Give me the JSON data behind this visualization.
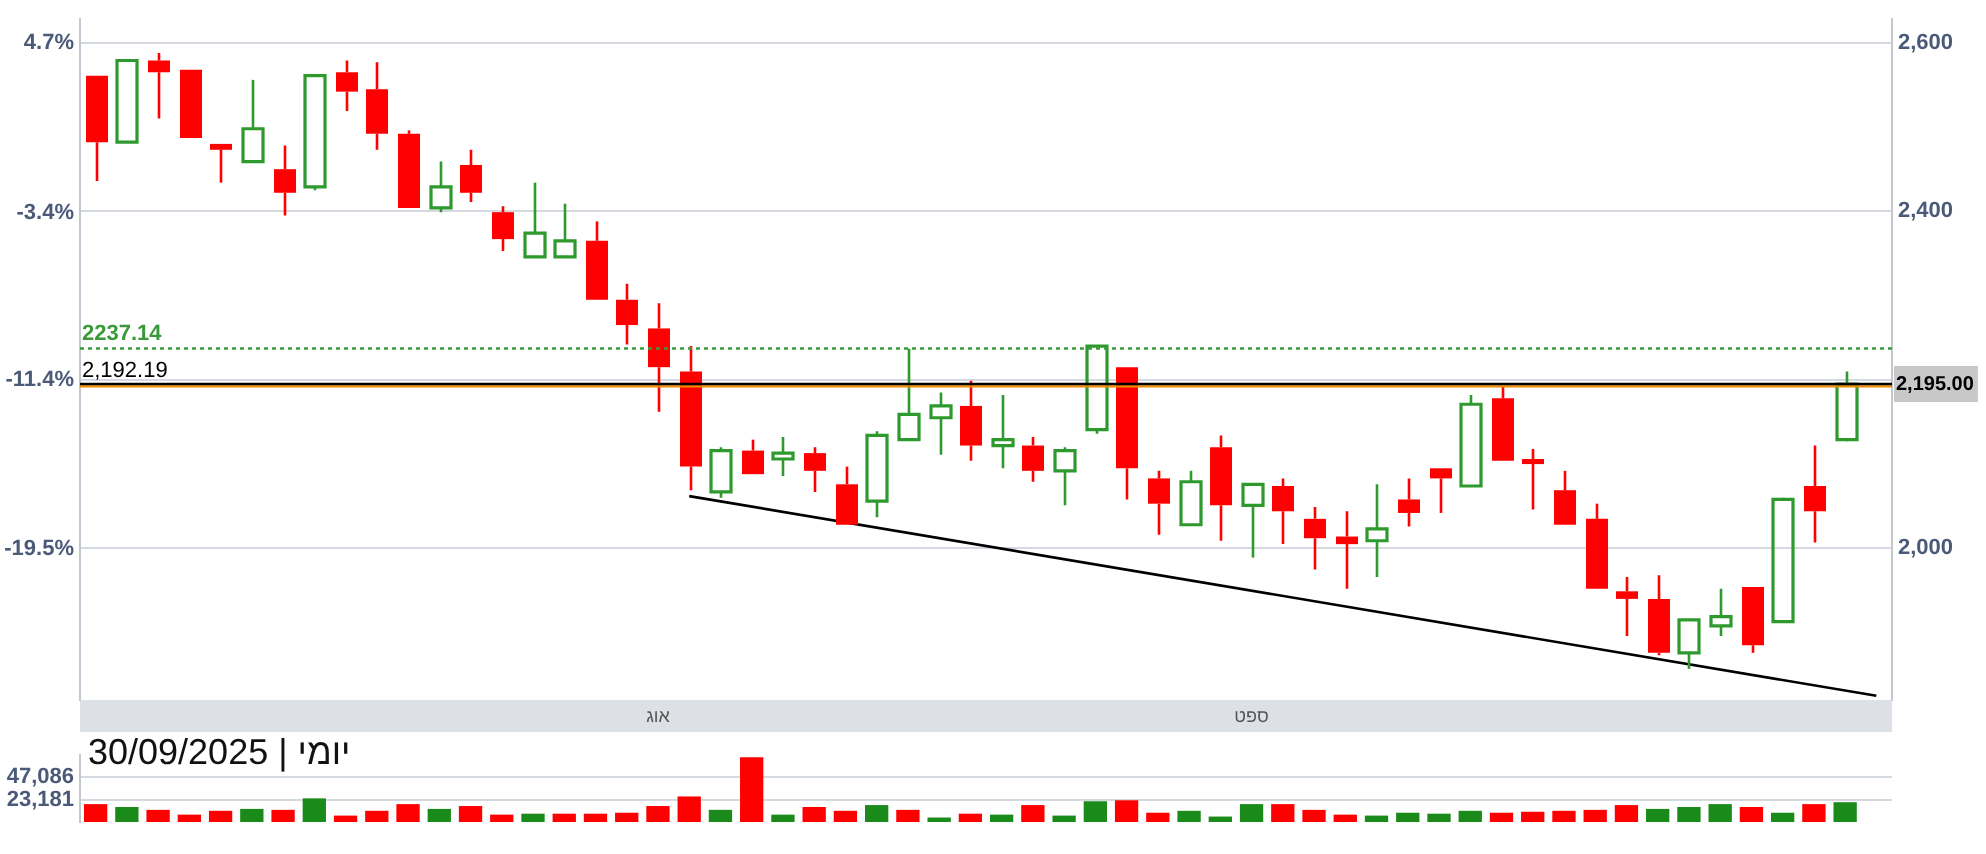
{
  "chart_data": [
    {
      "type": "candlestick",
      "title": "יומי | 30/09/2025",
      "categories": [
        null,
        null,
        null,
        null,
        null,
        null,
        null,
        null,
        null,
        null,
        null,
        null,
        null,
        null,
        null,
        null,
        null,
        null,
        "אוג",
        null,
        null,
        null,
        null,
        null,
        null,
        null,
        null,
        null,
        null,
        null,
        null,
        null,
        null,
        null,
        null,
        null,
        null,
        "ספט",
        null,
        null,
        null,
        null,
        null,
        null,
        null,
        null,
        null,
        null,
        null,
        null,
        null,
        null,
        null,
        null,
        null,
        null,
        null,
        null
      ],
      "ohlc": [
        [
          2561,
          2561,
          2436,
          2482
        ],
        [
          2482,
          2579,
          2482,
          2579
        ],
        [
          2579,
          2588,
          2510,
          2565
        ],
        [
          2568,
          2568,
          2487,
          2487
        ],
        [
          2480,
          2480,
          2434,
          2473
        ],
        [
          2459,
          2556,
          2459,
          2498
        ],
        [
          2450,
          2478,
          2395,
          2422
        ],
        [
          2429,
          2561,
          2425,
          2561
        ],
        [
          2565,
          2579,
          2519,
          2542
        ],
        [
          2545,
          2577,
          2473,
          2492
        ],
        [
          2492,
          2496,
          2404,
          2404
        ],
        [
          2404,
          2459,
          2399,
          2429
        ],
        [
          2455,
          2473,
          2411,
          2422
        ],
        [
          2399,
          2406,
          2353,
          2367
        ],
        [
          2346,
          2434,
          2346,
          2374
        ],
        [
          2346,
          2409,
          2346,
          2365
        ],
        [
          2365,
          2388,
          2295,
          2295
        ],
        [
          2295,
          2314,
          2242,
          2265
        ],
        [
          2261,
          2291,
          2162,
          2215
        ],
        [
          2210,
          2240,
          2069,
          2097
        ],
        [
          2067,
          2120,
          2060,
          2116
        ],
        [
          2116,
          2129,
          2088,
          2088
        ],
        [
          2106,
          2132,
          2086,
          2113
        ],
        [
          2113,
          2120,
          2067,
          2092
        ],
        [
          2076,
          2097,
          2028,
          2028
        ],
        [
          2056,
          2139,
          2037,
          2134
        ],
        [
          2129,
          2237,
          2129,
          2159
        ],
        [
          2155,
          2185,
          2111,
          2169
        ],
        [
          2169,
          2199,
          2104,
          2122
        ],
        [
          2122,
          2182,
          2095,
          2129
        ],
        [
          2122,
          2132,
          2079,
          2092
        ],
        [
          2092,
          2120,
          2051,
          2116
        ],
        [
          2141,
          2240,
          2136,
          2240
        ],
        [
          2215,
          2215,
          2058,
          2095
        ],
        [
          2083,
          2092,
          2016,
          2053
        ],
        [
          2028,
          2092,
          2028,
          2079
        ],
        [
          2120,
          2134,
          2009,
          2051
        ],
        [
          2051,
          2076,
          1989,
          2076
        ],
        [
          2074,
          2083,
          2005,
          2044
        ],
        [
          2035,
          2049,
          1975,
          2012
        ],
        [
          2014,
          2044,
          1952,
          2005
        ],
        [
          2009,
          2076,
          1966,
          2023
        ],
        [
          2058,
          2083,
          2026,
          2042
        ],
        [
          2095,
          2095,
          2042,
          2083
        ],
        [
          2074,
          2182,
          2074,
          2171
        ],
        [
          2178,
          2192,
          2104,
          2104
        ],
        [
          2106,
          2118,
          2046,
          2100
        ],
        [
          2069,
          2092,
          2028,
          2028
        ],
        [
          2035,
          2053,
          1952,
          1952
        ],
        [
          1949,
          1966,
          1896,
          1940
        ],
        [
          1940,
          1968,
          1873,
          1876
        ],
        [
          1876,
          1915,
          1857,
          1915
        ],
        [
          1908,
          1952,
          1896,
          1919
        ],
        [
          1954,
          1954,
          1876,
          1885
        ],
        [
          1913,
          2060,
          1913,
          2058
        ],
        [
          2074,
          2122,
          2007,
          2044
        ],
        [
          2129,
          2210,
          2127,
          2195
        ],
        null
      ],
      "colors": [
        "#ff0000",
        "#2e9a2e",
        "#ff0000",
        "#ff0000",
        "#ff0000",
        "#2e9a2e",
        "#ff0000",
        "#2e9a2e",
        "#ff0000",
        "#ff0000",
        "#ff0000",
        "#2e9a2e",
        "#ff0000",
        "#ff0000",
        "#2e9a2e",
        "#2e9a2e",
        "#ff0000",
        "#ff0000",
        "#ff0000",
        "#ff0000",
        "#2e9a2e",
        "#ff0000",
        "#2e9a2e",
        "#ff0000",
        "#ff0000",
        "#2e9a2e",
        "#2e9a2e",
        "#2e9a2e",
        "#ff0000",
        "#2e9a2e",
        "#ff0000",
        "#2e9a2e",
        "#2e9a2e",
        "#ff0000",
        "#ff0000",
        "#2e9a2e",
        "#ff0000",
        "#2e9a2e",
        "#ff0000",
        "#ff0000",
        "#ff0000",
        "#2e9a2e",
        "#ff0000",
        "#ff0000",
        "#2e9a2e",
        "#ff0000",
        "#ff0000",
        "#ff0000",
        "#ff0000",
        "#ff0000",
        "#ff0000",
        "#2e9a2e",
        "#2e9a2e",
        "#ff0000",
        "#2e9a2e",
        "#ff0000",
        "#2e9a2e",
        null
      ],
      "series": [
        {
          "type": "line",
          "color": "#000000",
          "values": [
            null,
            null,
            null,
            null,
            null,
            null,
            null,
            null,
            null,
            null,
            null,
            null,
            null,
            null,
            null,
            null,
            null,
            null,
            null,
            2062,
            null,
            null,
            null,
            null,
            null,
            null,
            null,
            null,
            null,
            null,
            null,
            null,
            null,
            null,
            null,
            null,
            null,
            null,
            null,
            null,
            null,
            null,
            null,
            null,
            null,
            null,
            null,
            null,
            null,
            null,
            null,
            null,
            null,
            null,
            null,
            null,
            null,
            1825
          ]
        }
      ],
      "ylim": [
        1820,
        2628
      ],
      "yticks": [
        {
          "value": 2000,
          "label": "2,000"
        },
        {
          "value": 2200,
          "label": null
        },
        {
          "value": 2400,
          "label": "2,400"
        },
        {
          "value": 2600,
          "label": "2,600"
        }
      ],
      "y2lim": [
        -26.7,
        5.84
      ],
      "y2ticks": [
        {
          "value": 4.7,
          "label": "4.7%"
        },
        {
          "value": -3.4,
          "label": "-3.4%"
        },
        {
          "value": -11.4,
          "label": "-11.4%"
        },
        {
          "value": -19.5,
          "label": "-19.5%"
        }
      ],
      "ref_lines": [
        {
          "axis": "y",
          "value": 2237.14,
          "label": "2237.14",
          "color": "#3a9a3a",
          "line_style": "dotted"
        },
        {
          "axis": "y",
          "value": 2192.19,
          "label": "2,192.19",
          "color": "#f08c00",
          "line_style": "solid"
        },
        {
          "axis": "y",
          "value": 2195,
          "label": "2,195.00",
          "color": "#000000",
          "line_style": "solid"
        }
      ],
      "grid": "y",
      "legend": false
    },
    {
      "type": "bar",
      "categories": [
        null,
        null,
        null,
        null,
        null,
        null,
        null,
        null,
        null,
        null,
        null,
        null,
        null,
        null,
        null,
        null,
        null,
        null,
        null,
        null,
        null,
        null,
        null,
        null,
        null,
        null,
        null,
        null,
        null,
        null,
        null,
        null,
        null,
        null,
        null,
        null,
        null,
        null,
        null,
        null,
        null,
        null,
        null,
        null,
        null,
        null,
        null,
        null,
        null,
        null,
        null,
        null,
        null,
        null,
        null,
        null,
        null,
        null
      ],
      "values": [
        18000,
        15000,
        12000,
        7000,
        11000,
        13000,
        12000,
        24000,
        6000,
        11000,
        18000,
        13000,
        16000,
        7000,
        8000,
        8000,
        8000,
        9000,
        16000,
        26000,
        12000,
        67000,
        7000,
        15000,
        11000,
        17000,
        12000,
        4000,
        8000,
        7000,
        17000,
        6000,
        21000,
        22000,
        9000,
        11000,
        5000,
        18000,
        18000,
        12000,
        7000,
        6000,
        9000,
        8000,
        11000,
        9000,
        10000,
        11000,
        12000,
        17000,
        13000,
        15000,
        18000,
        15000,
        9000,
        18000,
        20000,
        null
      ],
      "colors": [
        "#ff0000",
        "#1a8a1a",
        "#ff0000",
        "#ff0000",
        "#ff0000",
        "#1a8a1a",
        "#ff0000",
        "#1a8a1a",
        "#ff0000",
        "#ff0000",
        "#ff0000",
        "#1a8a1a",
        "#ff0000",
        "#ff0000",
        "#1a8a1a",
        "#ff0000",
        "#ff0000",
        "#ff0000",
        "#ff0000",
        "#ff0000",
        "#1a8a1a",
        "#ff0000",
        "#1a8a1a",
        "#ff0000",
        "#ff0000",
        "#1a8a1a",
        "#ff0000",
        "#1a8a1a",
        "#ff0000",
        "#1a8a1a",
        "#ff0000",
        "#1a8a1a",
        "#1a8a1a",
        "#ff0000",
        "#ff0000",
        "#1a8a1a",
        "#1a8a1a",
        "#1a8a1a",
        "#ff0000",
        "#ff0000",
        "#ff0000",
        "#1a8a1a",
        "#1a8a1a",
        "#1a8a1a",
        "#1a8a1a",
        "#ff0000",
        "#ff0000",
        "#ff0000",
        "#ff0000",
        "#ff0000",
        "#1a8a1a",
        "#1a8a1a",
        "#1a8a1a",
        "#ff0000",
        "#1a8a1a",
        "#ff0000",
        "#1a8a1a",
        "#ff0000"
      ],
      "ylim": [
        0,
        69800
      ],
      "yticks": [
        {
          "value": 23181,
          "label": "23,181"
        },
        {
          "value": 47086,
          "label": "47,086"
        }
      ],
      "tick_labels": "y",
      "grid": "y",
      "legend": false
    }
  ]
}
